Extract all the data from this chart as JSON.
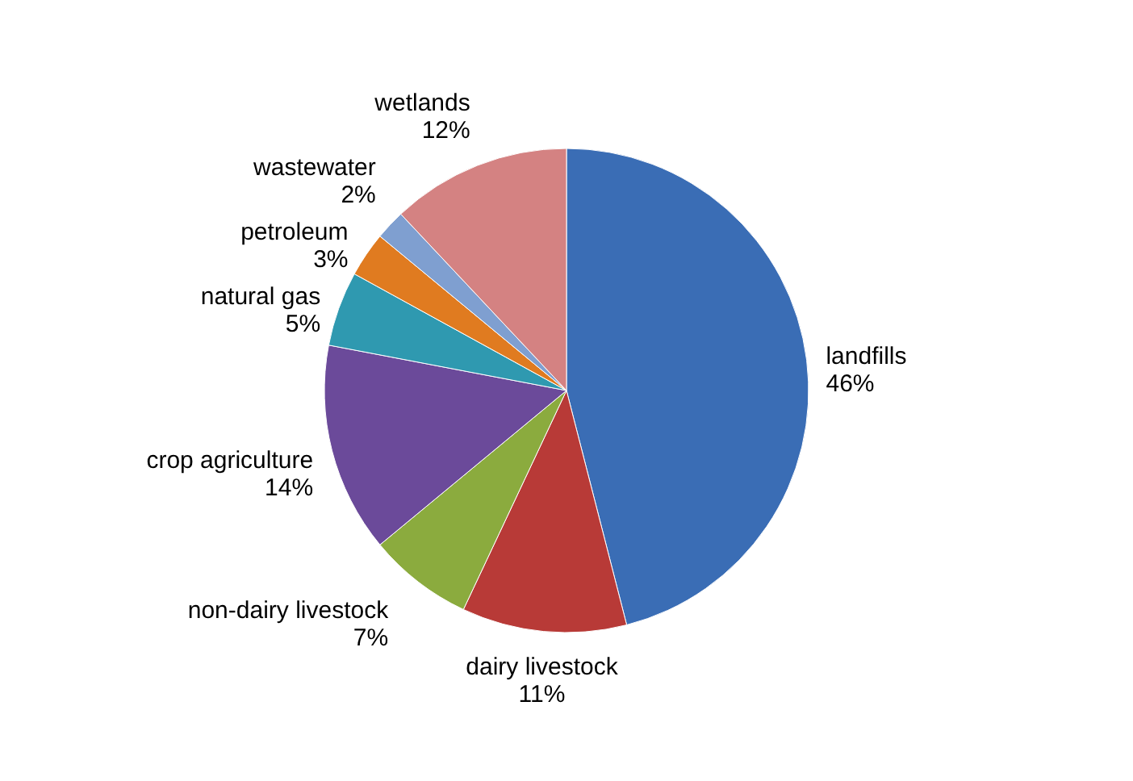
{
  "chart_data": {
    "type": "pie",
    "categories": [
      "landfills",
      "dairy livestock",
      "non-dairy livestock",
      "crop agriculture",
      "natural gas",
      "petroleum",
      "wastewater",
      "wetlands"
    ],
    "values": [
      46,
      11,
      7,
      14,
      5,
      3,
      2,
      12
    ],
    "value_labels": [
      "46%",
      "11%",
      "7%",
      "14%",
      "5%",
      "3%",
      "2%",
      "12%"
    ],
    "colors": [
      "#3a6db5",
      "#b83a37",
      "#8bab3e",
      "#6b4a9a",
      "#2f99b0",
      "#e07b20",
      "#7f9fd0",
      "#d48282"
    ]
  }
}
